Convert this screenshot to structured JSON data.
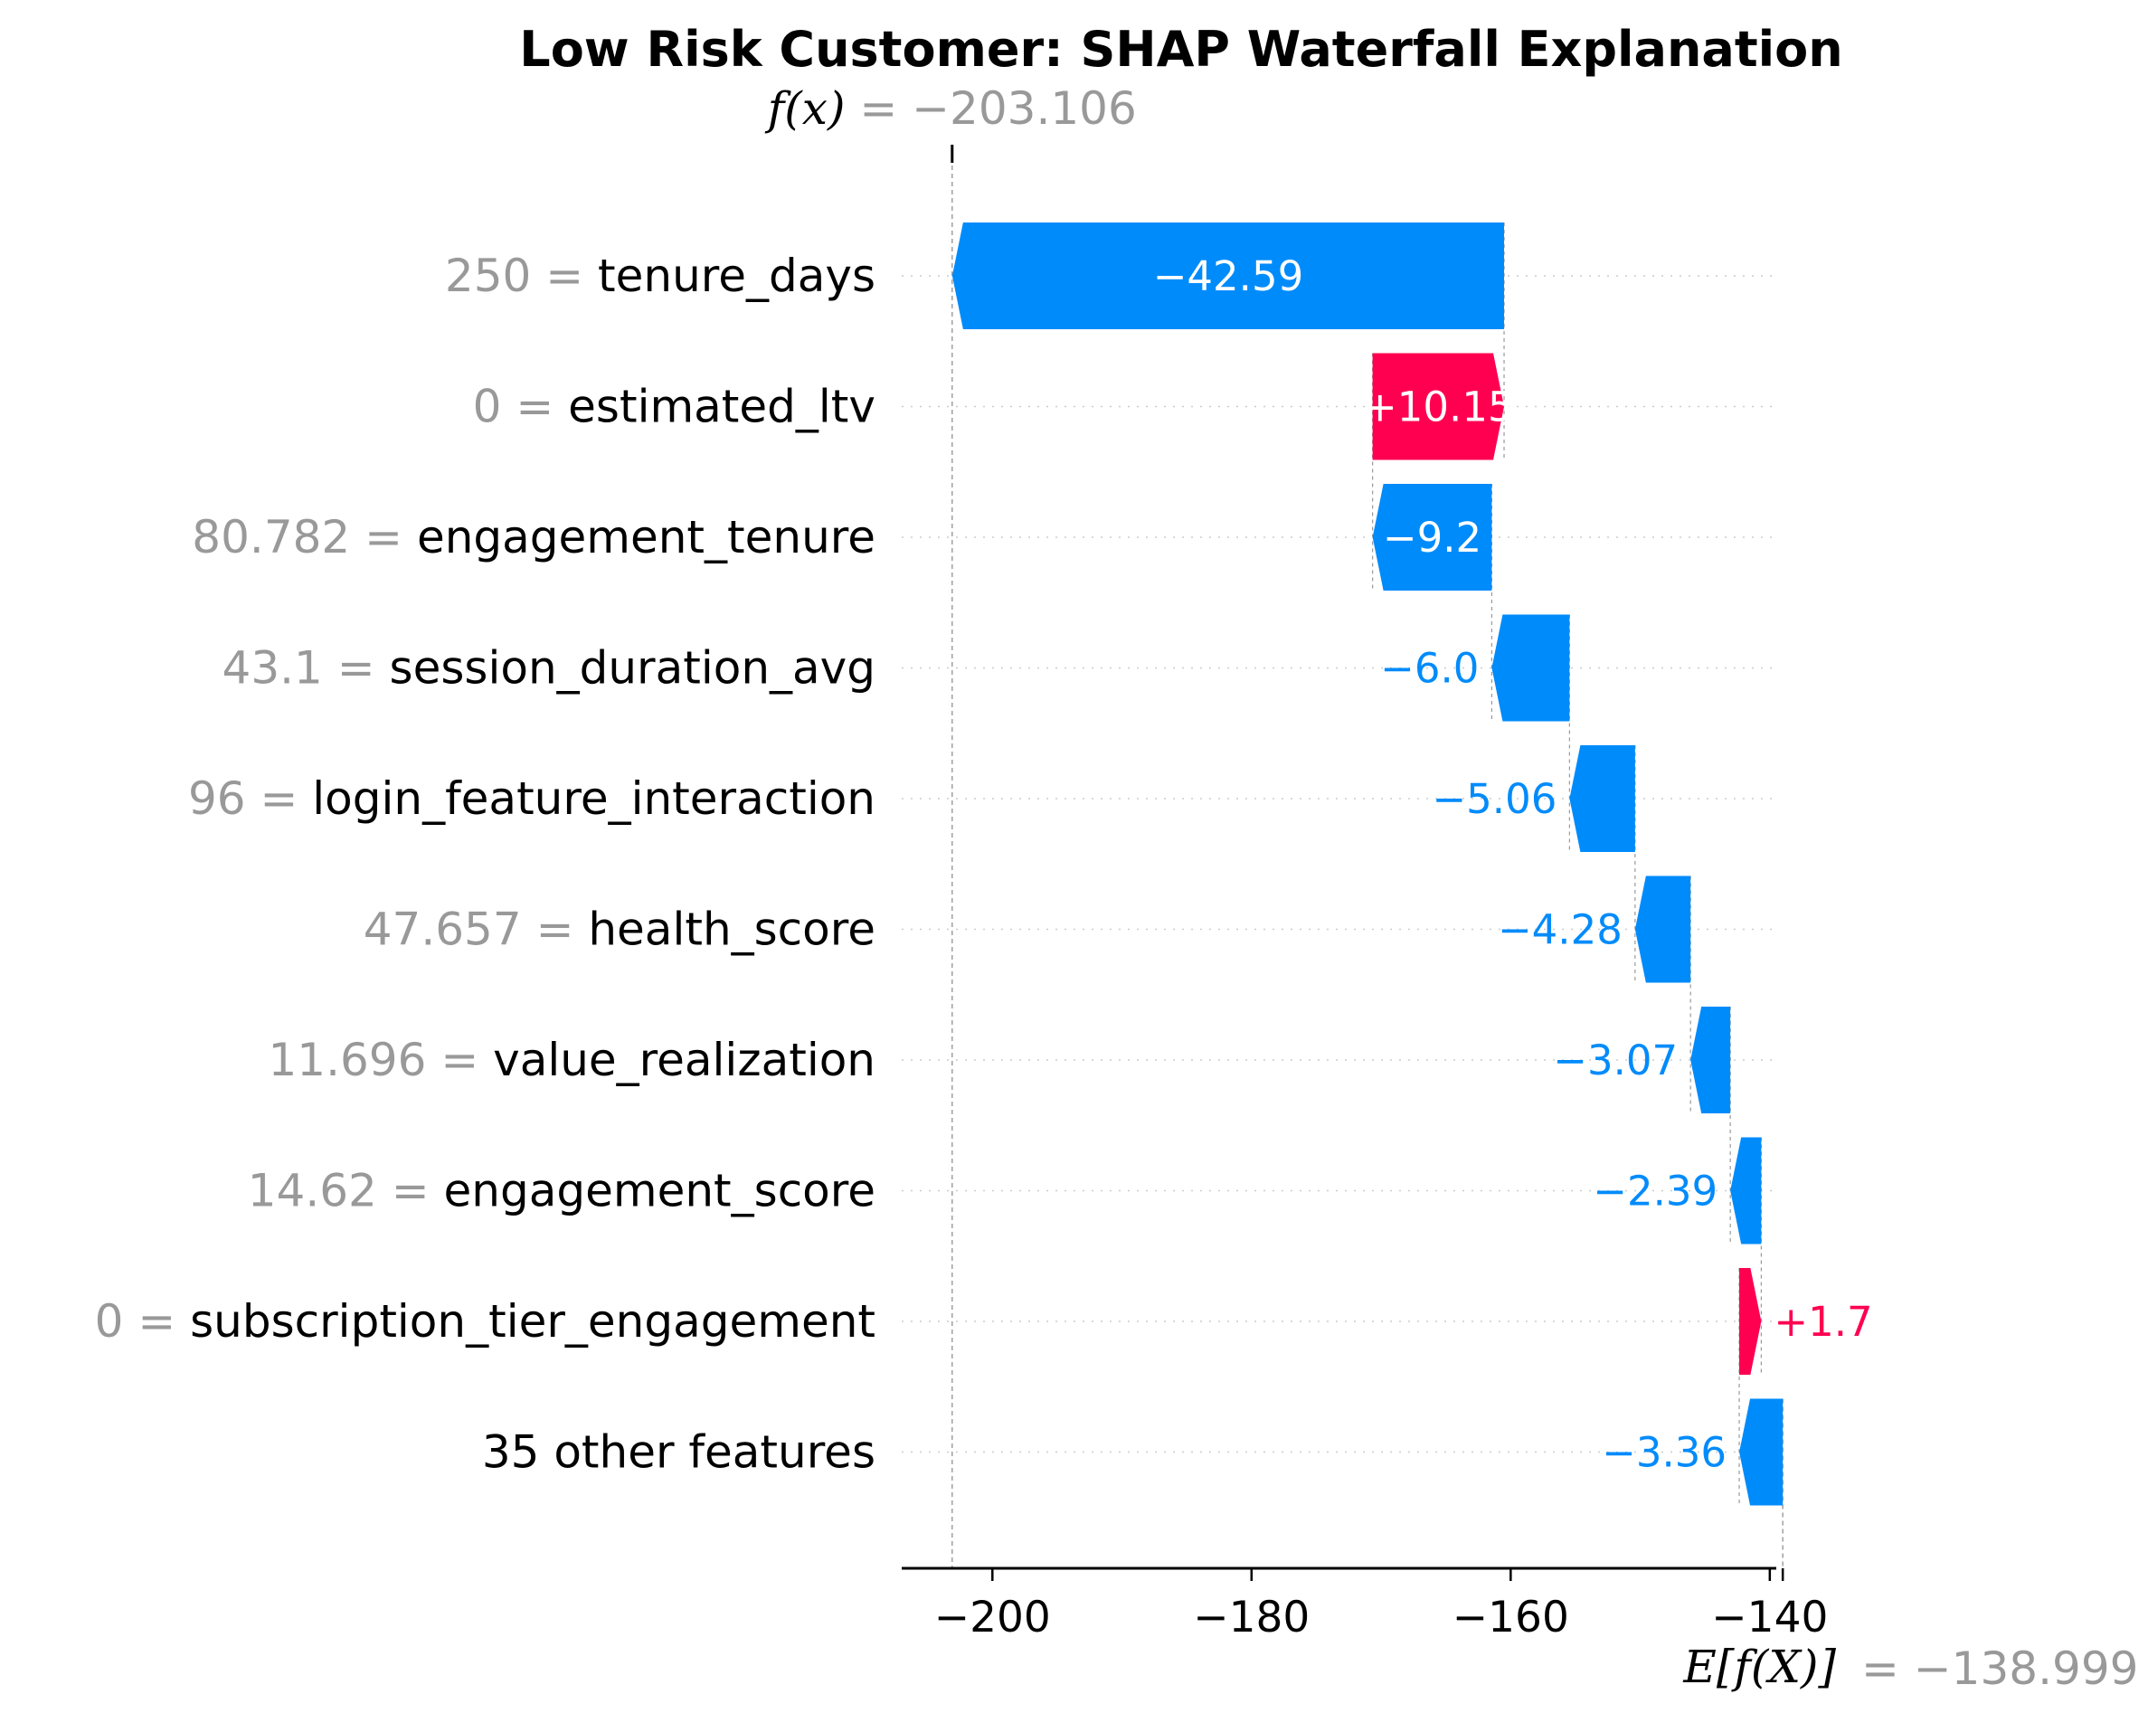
{
  "chart_data": {
    "type": "waterfall",
    "title": "Low Risk Customer: SHAP Waterfall Explanation",
    "fx": {
      "label": "f(x)",
      "value_text": "= −203.106",
      "value": -203.106
    },
    "base": {
      "label": "E[f(X)]",
      "value_text": "= −138.999",
      "value": -138.999
    },
    "xlim": [
      -207,
      -139.5
    ],
    "xticks": [
      -200,
      -180,
      -160,
      -140
    ],
    "xtick_labels": [
      "−200",
      "−180",
      "−160",
      "−140"
    ],
    "features": [
      {
        "value": "250 =",
        "name": "tenure_days",
        "shap": -42.59,
        "label": "−42.59"
      },
      {
        "value": "0 =",
        "name": "estimated_ltv",
        "shap": 10.15,
        "label": "+10.15"
      },
      {
        "value": "80.782 =",
        "name": "engagement_tenure",
        "shap": -9.2,
        "label": "−9.2"
      },
      {
        "value": "43.1 =",
        "name": "session_duration_avg",
        "shap": -6.0,
        "label": "−6.0"
      },
      {
        "value": "96 =",
        "name": "login_feature_interaction",
        "shap": -5.06,
        "label": "−5.06"
      },
      {
        "value": "47.657 =",
        "name": "health_score",
        "shap": -4.28,
        "label": "−4.28"
      },
      {
        "value": "11.696 =",
        "name": "value_realization",
        "shap": -3.07,
        "label": "−3.07"
      },
      {
        "value": "14.62 =",
        "name": "engagement_score",
        "shap": -2.39,
        "label": "−2.39"
      },
      {
        "value": "0 =",
        "name": "subscription_tier_engagement",
        "shap": 1.7,
        "label": "+1.7"
      },
      {
        "value": "",
        "name": "35 other features",
        "shap": -3.36,
        "label": "−3.36"
      }
    ],
    "colors": {
      "positive": "#ff0051",
      "negative": "#008bfb",
      "muted": "#999999"
    }
  }
}
